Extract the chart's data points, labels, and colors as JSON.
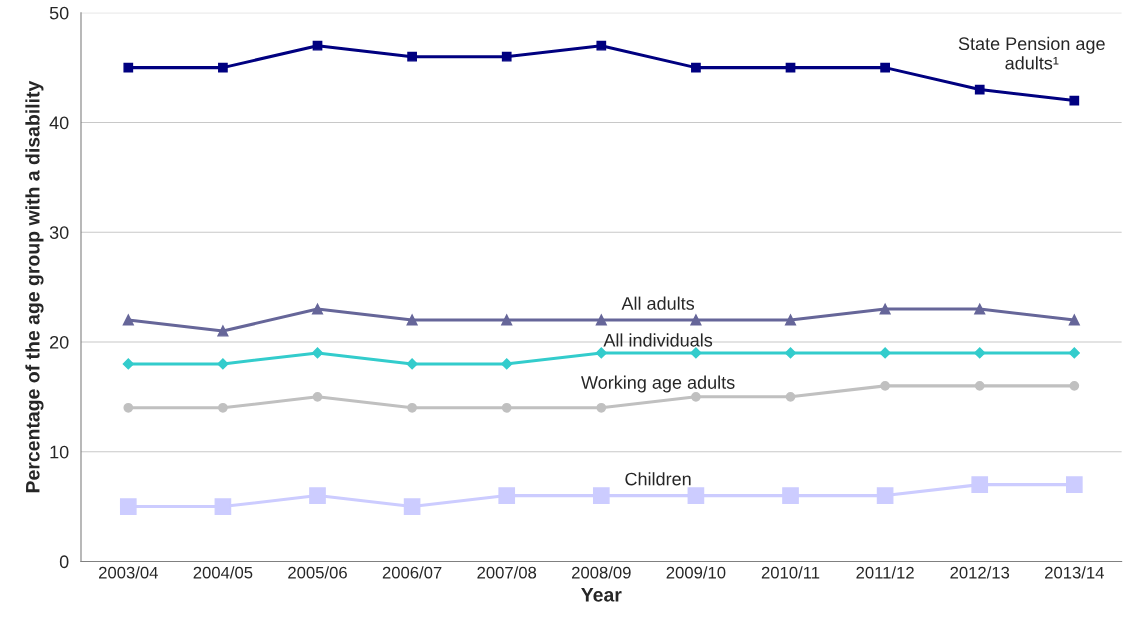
{
  "chart_data": {
    "type": "line",
    "xlabel": "Year",
    "ylabel": "Percentage of the age group with a disability",
    "categories": [
      "2003/04",
      "2004/05",
      "2005/06",
      "2006/07",
      "2007/08",
      "2008/09",
      "2009/10",
      "2010/11",
      "2011/12",
      "2012/13",
      "2013/14"
    ],
    "series": [
      {
        "name": "State Pension age adults¹",
        "color": "#000080",
        "marker": "square",
        "values": [
          45,
          45,
          47,
          46,
          46,
          47,
          45,
          45,
          45,
          43,
          42
        ]
      },
      {
        "name": "All adults",
        "color": "#666699",
        "marker": "triangle",
        "values": [
          22,
          21,
          23,
          22,
          22,
          22,
          22,
          22,
          23,
          23,
          22
        ]
      },
      {
        "name": "All individuals",
        "color": "#33cccc",
        "marker": "diamond",
        "values": [
          18,
          18,
          19,
          18,
          18,
          19,
          19,
          19,
          19,
          19,
          19
        ]
      },
      {
        "name": "Working age adults",
        "color": "#c0c0c0",
        "marker": "circle",
        "values": [
          14,
          14,
          15,
          14,
          14,
          14,
          15,
          15,
          16,
          16,
          16
        ]
      },
      {
        "name": "Children",
        "color": "#ccccff",
        "marker": "square",
        "values": [
          5,
          5,
          6,
          5,
          6,
          6,
          6,
          6,
          6,
          7,
          7
        ]
      }
    ],
    "ylim": [
      0,
      50
    ],
    "yticks": [
      0,
      10,
      20,
      30,
      40,
      50
    ],
    "grid": "y",
    "legend": false,
    "line_style": "solid"
  }
}
